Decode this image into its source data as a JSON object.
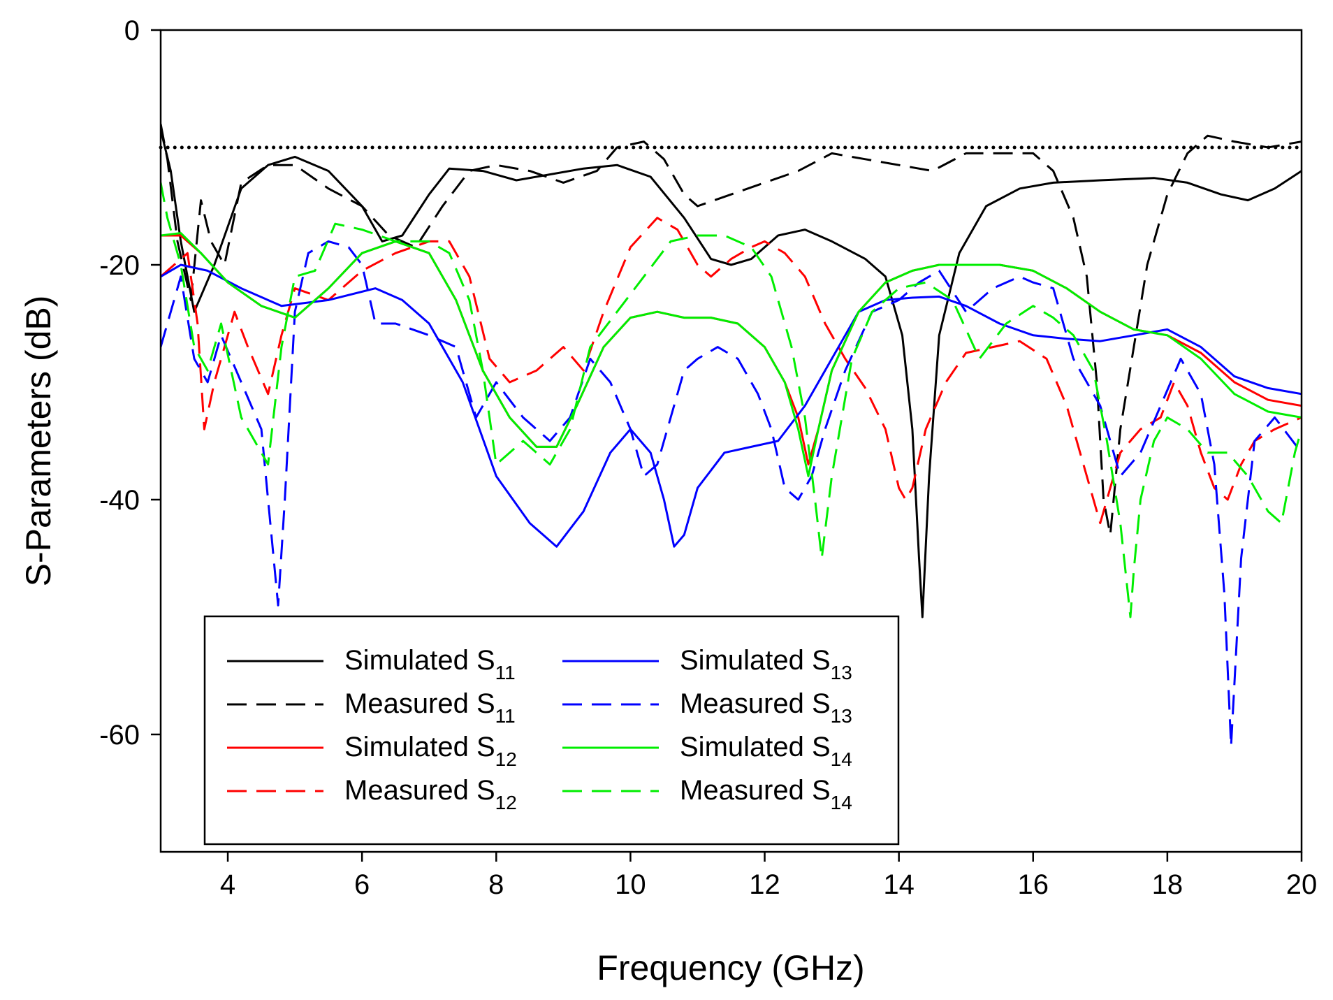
{
  "chart_data": {
    "type": "line",
    "title": "",
    "xlabel": "Frequency (GHz)",
    "ylabel": "S-Parameters (dB)",
    "xlim": [
      3,
      20
    ],
    "ylim": [
      -70,
      0
    ],
    "xticks": [
      4,
      6,
      8,
      10,
      12,
      14,
      16,
      18,
      20
    ],
    "xtick_labels": [
      "4",
      "6",
      "8",
      "10",
      "12",
      "14",
      "16",
      "18",
      "20"
    ],
    "yticks": [
      0,
      -20,
      -40,
      -60
    ],
    "ytick_labels": [
      "0",
      "-20",
      "-40",
      "-60"
    ],
    "grid": false,
    "legend_position": "bottom-left",
    "reference_line": {
      "y": -10,
      "style": "dotted",
      "color": "#000000"
    },
    "series": [
      {
        "name": "Simulated S",
        "sub": "11",
        "color": "#000000",
        "dash": "solid",
        "x": [
          3.0,
          3.15,
          3.3,
          3.5,
          3.8,
          4.2,
          4.6,
          5.0,
          5.5,
          6.0,
          6.3,
          6.6,
          7.0,
          7.3,
          7.8,
          8.3,
          8.8,
          9.3,
          9.8,
          10.3,
          10.8,
          11.2,
          11.5,
          11.8,
          12.2,
          12.6,
          13.0,
          13.5,
          13.8,
          14.05,
          14.2,
          14.3,
          14.35,
          14.45,
          14.6,
          14.9,
          15.3,
          15.8,
          16.3,
          17.0,
          17.8,
          18.3,
          18.8,
          19.2,
          19.6,
          20.0
        ],
        "y": [
          -8.5,
          -12,
          -18,
          -24,
          -20,
          -13.5,
          -11.5,
          -10.8,
          -12,
          -15,
          -18,
          -17.5,
          -14,
          -11.8,
          -12,
          -12.8,
          -12.3,
          -11.8,
          -11.5,
          -12.5,
          -16,
          -19.5,
          -20,
          -19.5,
          -17.5,
          -17,
          -18,
          -19.5,
          -21,
          -26,
          -34,
          -45,
          -50,
          -38,
          -26,
          -19,
          -15,
          -13.5,
          -13,
          -12.8,
          -12.6,
          -13,
          -14,
          -14.5,
          -13.5,
          -12
        ]
      },
      {
        "name": "Measured S",
        "sub": "11",
        "color": "#000000",
        "dash": "28,14",
        "x": [
          3.0,
          3.1,
          3.25,
          3.45,
          3.6,
          3.75,
          3.95,
          4.2,
          4.6,
          5.0,
          5.5,
          6.0,
          6.4,
          6.8,
          7.2,
          7.6,
          8.0,
          8.5,
          9.0,
          9.5,
          9.8,
          10.2,
          10.5,
          10.8,
          11.0,
          11.5,
          12.0,
          12.5,
          13.0,
          13.5,
          14.0,
          14.5,
          15.0,
          15.5,
          16.0,
          16.3,
          16.6,
          16.8,
          16.95,
          17.05,
          17.15,
          17.3,
          17.5,
          17.7,
          18.0,
          18.3,
          18.6,
          19.0,
          19.5,
          20.0
        ],
        "y": [
          -8,
          -11,
          -18,
          -23,
          -14.5,
          -18,
          -20,
          -13,
          -11.5,
          -11.5,
          -13.5,
          -15,
          -17.5,
          -18.5,
          -15,
          -12,
          -11.5,
          -12,
          -13,
          -12,
          -10,
          -9.5,
          -11,
          -14,
          -15,
          -14,
          -13,
          -12,
          -10.5,
          -11,
          -11.5,
          -12,
          -10.5,
          -10.5,
          -10.5,
          -12,
          -16,
          -21,
          -30,
          -40,
          -43,
          -34,
          -27,
          -20,
          -14,
          -10.5,
          -9,
          -9.5,
          -10,
          -9.5
        ]
      },
      {
        "name": "Simulated S",
        "sub": "12",
        "color": "#ff0000",
        "dash": "solid",
        "x": [
          3.0,
          3.3,
          3.6,
          4.0,
          4.5,
          5.0,
          5.5,
          6.0,
          6.5,
          7.0,
          7.4,
          7.8,
          8.2,
          8.6,
          8.9,
          9.2,
          9.6,
          10.0,
          10.4,
          10.8,
          11.2,
          11.6,
          12.0,
          12.3,
          12.5,
          12.65,
          12.8,
          13.0,
          13.4,
          13.8,
          14.2,
          14.6,
          15.0,
          15.5,
          16.0,
          16.5,
          17.0,
          17.5,
          18.0,
          18.5,
          19.0,
          19.5,
          20.0
        ],
        "y": [
          -17.5,
          -17.5,
          -19,
          -21.5,
          -23.5,
          -24.5,
          -22,
          -19,
          -18,
          -19,
          -23,
          -29,
          -33,
          -35.5,
          -35.5,
          -32,
          -27,
          -24.5,
          -24,
          -24.5,
          -24.5,
          -25,
          -27,
          -30,
          -33,
          -37,
          -34,
          -29,
          -24,
          -21.5,
          -20.5,
          -20,
          -20,
          -20,
          -20.5,
          -22,
          -24,
          -25.5,
          -26,
          -27.5,
          -30,
          -31.5,
          -32
        ]
      },
      {
        "name": "Measured S",
        "sub": "12",
        "color": "#ff0000",
        "dash": "28,14",
        "x": [
          3.0,
          3.2,
          3.4,
          3.55,
          3.65,
          3.8,
          3.95,
          4.1,
          4.3,
          4.6,
          4.8,
          5.0,
          5.5,
          6.0,
          6.5,
          7.0,
          7.3,
          7.6,
          7.9,
          8.2,
          8.6,
          9.0,
          9.3,
          9.6,
          10.0,
          10.4,
          10.7,
          11.0,
          11.2,
          11.5,
          11.8,
          12.0,
          12.3,
          12.6,
          12.9,
          13.2,
          13.5,
          13.8,
          14.0,
          14.1,
          14.2,
          14.4,
          14.7,
          15.0,
          15.4,
          15.8,
          16.2,
          16.5,
          16.8,
          17.0,
          17.3,
          17.6,
          17.9,
          18.1,
          18.3,
          18.5,
          18.7,
          18.9,
          19.1,
          19.3,
          19.6,
          20.0
        ],
        "y": [
          -21,
          -20,
          -19,
          -25,
          -34,
          -30,
          -27,
          -24,
          -27,
          -31,
          -26,
          -22,
          -23,
          -20.5,
          -19,
          -18,
          -18,
          -21,
          -28,
          -30,
          -29,
          -27,
          -29,
          -24,
          -18.5,
          -16,
          -17,
          -20,
          -21,
          -19.5,
          -18.5,
          -18,
          -19,
          -21,
          -25,
          -28,
          -30.5,
          -34,
          -39,
          -40,
          -39,
          -34,
          -30,
          -27.5,
          -27,
          -26.5,
          -28,
          -32,
          -38,
          -42,
          -36,
          -34,
          -33,
          -30,
          -32,
          -36,
          -39,
          -40,
          -37,
          -35,
          -34,
          -33
        ]
      },
      {
        "name": "Simulated S",
        "sub": "13",
        "color": "#0000ff",
        "dash": "solid",
        "x": [
          3.0,
          3.3,
          3.7,
          4.2,
          4.8,
          5.5,
          6.2,
          6.6,
          7.0,
          7.5,
          8.0,
          8.5,
          8.9,
          9.3,
          9.7,
          10.0,
          10.3,
          10.5,
          10.65,
          10.8,
          11.0,
          11.4,
          11.8,
          12.2,
          12.6,
          13.0,
          13.4,
          13.8,
          14.2,
          14.6,
          15.0,
          15.5,
          16.0,
          16.5,
          17.0,
          17.5,
          18.0,
          18.5,
          19.0,
          19.5,
          20.0
        ],
        "y": [
          -21,
          -20,
          -20.5,
          -22,
          -23.5,
          -23,
          -22,
          -23,
          -25,
          -30,
          -38,
          -42,
          -44,
          -41,
          -36,
          -34,
          -36,
          -40,
          -44,
          -43,
          -39,
          -36,
          -35.5,
          -35,
          -32,
          -28,
          -24,
          -23,
          -22.8,
          -22.7,
          -23.5,
          -25,
          -26,
          -26.3,
          -26.5,
          -26,
          -25.5,
          -27,
          -29.5,
          -30.5,
          -31
        ]
      },
      {
        "name": "Measured S",
        "sub": "13",
        "color": "#0000ff",
        "dash": "28,14",
        "x": [
          3.0,
          3.15,
          3.3,
          3.5,
          3.7,
          3.9,
          4.2,
          4.5,
          4.65,
          4.75,
          4.85,
          5.0,
          5.2,
          5.5,
          5.8,
          6.0,
          6.2,
          6.5,
          7.0,
          7.4,
          7.7,
          8.0,
          8.4,
          8.8,
          9.1,
          9.4,
          9.7,
          10.0,
          10.2,
          10.4,
          10.6,
          10.8,
          11.0,
          11.3,
          11.6,
          11.9,
          12.1,
          12.3,
          12.5,
          12.7,
          12.9,
          13.2,
          13.6,
          14.0,
          14.3,
          14.6,
          15.0,
          15.4,
          15.8,
          16.0,
          16.3,
          16.6,
          17.0,
          17.3,
          17.6,
          17.9,
          18.2,
          18.5,
          18.7,
          18.85,
          18.95,
          19.1,
          19.3,
          19.6,
          20.0
        ],
        "y": [
          -27,
          -24,
          -21,
          -28,
          -30,
          -26,
          -30,
          -34,
          -43,
          -49,
          -40,
          -24,
          -19,
          -18,
          -18.5,
          -20,
          -25,
          -25,
          -26,
          -27,
          -33,
          -30,
          -33,
          -35,
          -33,
          -28,
          -30,
          -34,
          -38,
          -37,
          -33,
          -29,
          -28,
          -27,
          -28,
          -31,
          -34,
          -39,
          -40,
          -38,
          -34,
          -29,
          -24,
          -23,
          -21.5,
          -20.5,
          -24,
          -22,
          -21,
          -21.5,
          -22,
          -28,
          -32,
          -38,
          -36,
          -32,
          -28,
          -31,
          -37,
          -48,
          -61,
          -45,
          -35,
          -33,
          -36
        ]
      },
      {
        "name": "Simulated S",
        "sub": "14",
        "color": "#00ee00",
        "dash": "solid",
        "x": [
          3.0,
          3.3,
          3.6,
          4.0,
          4.5,
          5.0,
          5.5,
          6.0,
          6.5,
          7.0,
          7.4,
          7.8,
          8.2,
          8.6,
          8.9,
          9.2,
          9.6,
          10.0,
          10.4,
          10.8,
          11.2,
          11.6,
          12.0,
          12.3,
          12.5,
          12.65,
          12.8,
          13.0,
          13.4,
          13.8,
          14.2,
          14.6,
          15.0,
          15.5,
          16.0,
          16.5,
          17.0,
          17.5,
          18.0,
          18.5,
          19.0,
          19.5,
          20.0
        ],
        "y": [
          -17.5,
          -17.3,
          -19,
          -21.5,
          -23.5,
          -24.5,
          -22,
          -19,
          -18,
          -19,
          -23,
          -29,
          -33,
          -35.5,
          -35.5,
          -32,
          -27,
          -24.5,
          -24,
          -24.5,
          -24.5,
          -25,
          -27,
          -30,
          -34,
          -38,
          -34,
          -29,
          -24,
          -21.5,
          -20.5,
          -20,
          -20,
          -20,
          -20.5,
          -22,
          -24,
          -25.5,
          -26,
          -28,
          -31,
          -32.5,
          -33
        ]
      },
      {
        "name": "Measured S",
        "sub": "14",
        "color": "#00ee00",
        "dash": "28,14",
        "x": [
          3.0,
          3.1,
          3.3,
          3.5,
          3.7,
          3.9,
          4.2,
          4.5,
          4.6,
          4.8,
          5.0,
          5.3,
          5.6,
          6.0,
          6.5,
          7.0,
          7.3,
          7.6,
          7.8,
          8.0,
          8.4,
          8.8,
          9.1,
          9.4,
          9.8,
          10.2,
          10.6,
          11.0,
          11.4,
          11.8,
          12.1,
          12.4,
          12.6,
          12.75,
          12.85,
          13.0,
          13.3,
          13.6,
          14.0,
          14.4,
          14.8,
          15.2,
          15.6,
          16.0,
          16.3,
          16.6,
          16.9,
          17.1,
          17.3,
          17.45,
          17.5,
          17.6,
          17.8,
          18.0,
          18.3,
          18.6,
          18.9,
          19.2,
          19.5,
          19.7,
          19.9,
          20.0
        ],
        "y": [
          -13,
          -16,
          -20,
          -27,
          -29,
          -25,
          -33,
          -36,
          -37,
          -27,
          -21,
          -20.5,
          -16.5,
          -17,
          -18,
          -18,
          -19,
          -23,
          -29,
          -37,
          -35,
          -37,
          -34,
          -27,
          -24,
          -21,
          -18,
          -17.5,
          -17.5,
          -18.5,
          -21,
          -27,
          -33,
          -40,
          -45,
          -38,
          -28,
          -24,
          -22,
          -21.5,
          -23,
          -28,
          -25,
          -23.5,
          -24.5,
          -26,
          -29,
          -35,
          -42,
          -50,
          -46,
          -40,
          -35,
          -33,
          -34,
          -36,
          -36,
          -38,
          -41,
          -42,
          -36,
          -34
        ]
      }
    ],
    "legend": [
      {
        "text": "Simulated S",
        "sub": "11",
        "series": 0
      },
      {
        "text": "Measured S",
        "sub": "11",
        "series": 1
      },
      {
        "text": "Simulated S",
        "sub": "12",
        "series": 2
      },
      {
        "text": "Measured S",
        "sub": "12",
        "series": 3
      },
      {
        "text": "Simulated S",
        "sub": "13",
        "series": 4
      },
      {
        "text": "Measured S",
        "sub": "13",
        "series": 5
      },
      {
        "text": "Simulated S",
        "sub": "14",
        "series": 6
      },
      {
        "text": "Measured S",
        "sub": "14",
        "series": 7
      }
    ]
  }
}
